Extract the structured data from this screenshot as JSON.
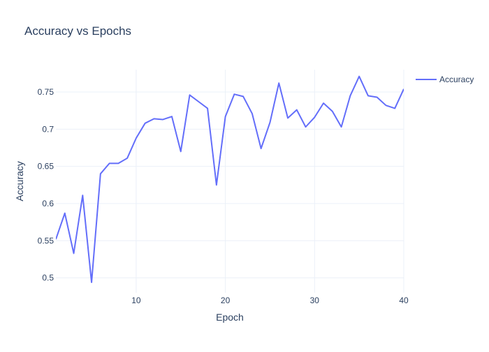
{
  "chart_data": {
    "type": "line",
    "title": "Accuracy vs Epochs",
    "xlabel": "Epoch",
    "ylabel": "Accuracy",
    "xlim": [
      1,
      40
    ],
    "ylim": [
      0.48,
      0.78
    ],
    "x_ticks": [
      10,
      20,
      30,
      40
    ],
    "y_ticks": [
      0.5,
      0.55,
      0.6,
      0.65,
      0.7,
      0.75
    ],
    "x_tick_labels": [
      "10",
      "20",
      "30",
      "40"
    ],
    "y_tick_labels": [
      "0.5",
      "0.55",
      "0.6",
      "0.65",
      "0.7",
      "0.75"
    ],
    "grid": true,
    "legend_position": "top-right",
    "series": [
      {
        "name": "Accuracy",
        "color": "#636efa",
        "x": [
          1,
          2,
          3,
          4,
          5,
          6,
          7,
          8,
          9,
          10,
          11,
          12,
          13,
          14,
          15,
          16,
          17,
          18,
          19,
          20,
          21,
          22,
          23,
          24,
          25,
          26,
          27,
          28,
          29,
          30,
          31,
          32,
          33,
          34,
          35,
          36,
          37,
          38,
          39,
          40
        ],
        "y": [
          0.552,
          0.587,
          0.533,
          0.611,
          0.494,
          0.64,
          0.654,
          0.654,
          0.661,
          0.688,
          0.708,
          0.714,
          0.713,
          0.717,
          0.67,
          0.746,
          0.737,
          0.728,
          0.625,
          0.717,
          0.747,
          0.744,
          0.721,
          0.674,
          0.709,
          0.762,
          0.715,
          0.726,
          0.703,
          0.716,
          0.735,
          0.724,
          0.703,
          0.745,
          0.771,
          0.745,
          0.743,
          0.732,
          0.728,
          0.754
        ]
      }
    ]
  }
}
